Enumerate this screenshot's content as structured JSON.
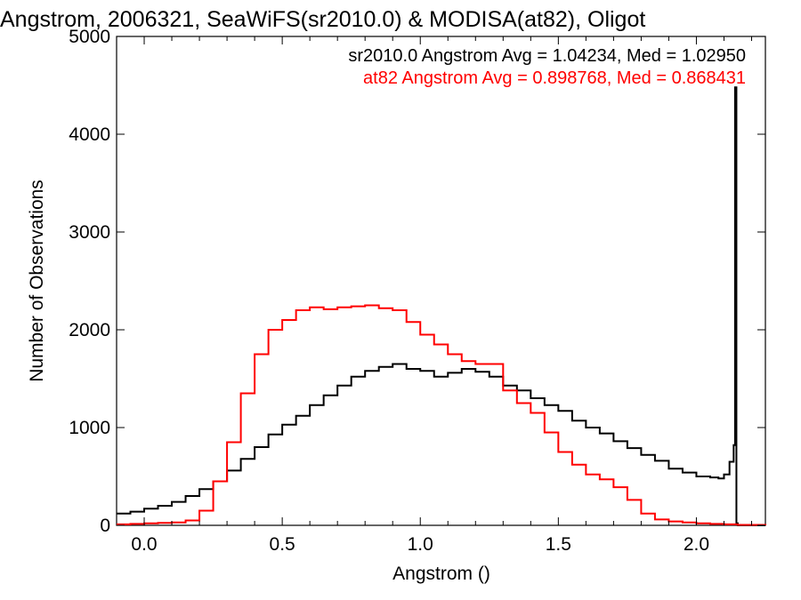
{
  "chart_data": {
    "type": "line",
    "step": true,
    "title": "Angstrom, 2006321, SeaWiFS(sr2010.0) & MODISA(at82), Oligot",
    "xlabel": "Angstrom ()",
    "ylabel": "Number of Observations",
    "xlim": [
      -0.1,
      2.25
    ],
    "ylim": [
      0,
      5000
    ],
    "xticks": [
      0.0,
      0.5,
      1.0,
      1.5,
      2.0
    ],
    "xtick_labels": [
      "0.0",
      "0.5",
      "1.0",
      "1.5",
      "2.0"
    ],
    "yticks": [
      0,
      1000,
      2000,
      3000,
      4000,
      5000
    ],
    "ytick_labels": [
      "0",
      "1000",
      "2000",
      "3000",
      "4000",
      "5000"
    ],
    "grid": false,
    "legend": "top-right",
    "annotations": [
      {
        "text": "sr2010.0 Angstrom Avg = 1.04234, Med = 1.02950",
        "color": "#000000"
      },
      {
        "text": "at82 Angstrom Avg = 0.898768, Med = 0.868431",
        "color": "#ff0000"
      }
    ],
    "series": [
      {
        "name": "sr2010.0",
        "color": "#000000",
        "x": [
          -0.1,
          -0.05,
          0.0,
          0.05,
          0.1,
          0.15,
          0.2,
          0.25,
          0.3,
          0.35,
          0.4,
          0.45,
          0.5,
          0.55,
          0.6,
          0.65,
          0.7,
          0.75,
          0.8,
          0.85,
          0.9,
          0.95,
          1.0,
          1.05,
          1.1,
          1.15,
          1.2,
          1.25,
          1.3,
          1.35,
          1.4,
          1.45,
          1.5,
          1.55,
          1.6,
          1.65,
          1.7,
          1.75,
          1.8,
          1.85,
          1.9,
          1.95,
          2.0,
          2.05,
          2.08,
          2.1,
          2.12,
          2.135,
          2.14,
          2.145,
          2.15,
          2.25
        ],
        "y": [
          120,
          140,
          170,
          200,
          240,
          300,
          370,
          450,
          560,
          680,
          800,
          930,
          1030,
          1120,
          1230,
          1330,
          1430,
          1520,
          1580,
          1620,
          1650,
          1600,
          1580,
          1520,
          1560,
          1600,
          1570,
          1520,
          1430,
          1380,
          1300,
          1230,
          1170,
          1070,
          1000,
          940,
          860,
          790,
          720,
          660,
          580,
          540,
          500,
          490,
          480,
          520,
          650,
          820,
          4480,
          20,
          0,
          0
        ]
      },
      {
        "name": "at82",
        "color": "#ff0000",
        "x": [
          -0.1,
          -0.05,
          0.0,
          0.05,
          0.1,
          0.15,
          0.2,
          0.25,
          0.3,
          0.35,
          0.4,
          0.45,
          0.5,
          0.55,
          0.6,
          0.65,
          0.7,
          0.75,
          0.8,
          0.85,
          0.9,
          0.95,
          1.0,
          1.05,
          1.1,
          1.15,
          1.2,
          1.25,
          1.3,
          1.35,
          1.4,
          1.45,
          1.5,
          1.55,
          1.6,
          1.65,
          1.7,
          1.75,
          1.8,
          1.85,
          1.9,
          1.95,
          2.0,
          2.05,
          2.1,
          2.15,
          2.25
        ],
        "y": [
          10,
          15,
          20,
          25,
          30,
          50,
          150,
          450,
          850,
          1350,
          1750,
          2000,
          2100,
          2200,
          2230,
          2210,
          2230,
          2240,
          2250,
          2220,
          2200,
          2080,
          1950,
          1850,
          1750,
          1680,
          1650,
          1650,
          1380,
          1250,
          1150,
          950,
          750,
          620,
          520,
          470,
          390,
          260,
          120,
          60,
          40,
          30,
          20,
          15,
          10,
          5,
          0
        ]
      }
    ]
  }
}
